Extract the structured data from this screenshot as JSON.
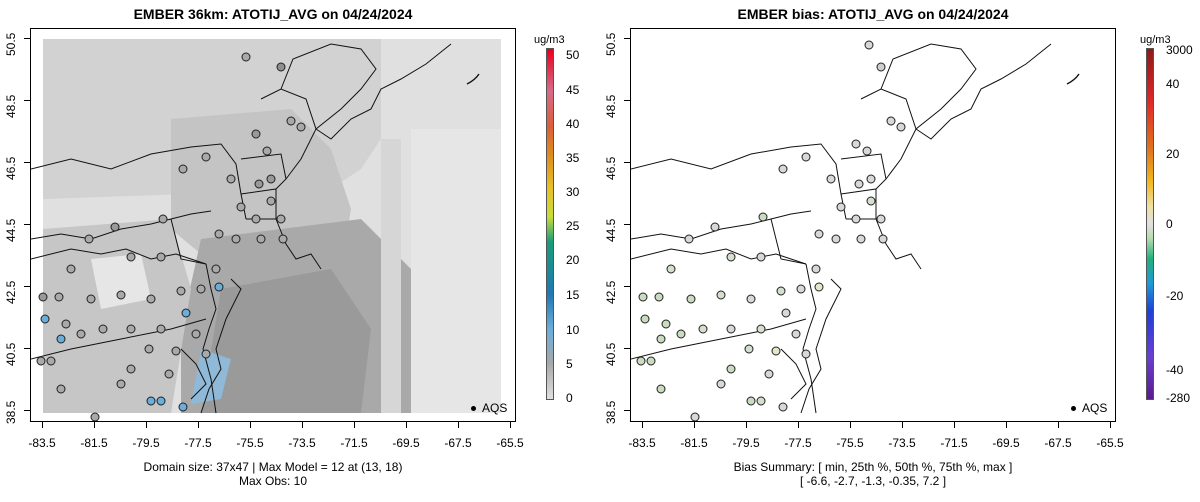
{
  "colors": {
    "land_gray": "#d9d9d9",
    "site_fill_left": "#a9a9a9",
    "site_fill_right": "#d4dfcd",
    "blue_site": "#6aaedb"
  },
  "left_panel": {
    "title": "EMBER 36km: ATOTIJ_AVG on 04/24/2024",
    "unit": "ug/m3",
    "colorbar_labels": [
      "50",
      "45",
      "40",
      "35",
      "30",
      "25",
      "20",
      "15",
      "10",
      "5",
      "0"
    ],
    "legend_label": "AQS",
    "footer_line1": "Domain size: 37x47 | Max Model = 12 at (13, 18)",
    "footer_line2": "Max Obs: 10"
  },
  "right_panel": {
    "title": "EMBER bias: ATOTIJ_AVG on 04/24/2024",
    "unit": "ug/m3",
    "colorbar_labels": [
      "3000",
      "40",
      "20",
      "0",
      "-20",
      "-40",
      "-280"
    ],
    "legend_label": "AQS",
    "footer_line1": "Bias Summary: [ min, 25th %, 50th %, 75th %, max ]",
    "footer_line2": "[ -6.6,   -2.7,   -1.3,   -0.35,   7.2 ]"
  },
  "axes": {
    "x_ticks": [
      "-83.5",
      "-81.5",
      "-79.5",
      "-77.5",
      "-75.5",
      "-73.5",
      "-71.5",
      "-69.5",
      "-67.5",
      "-65.5"
    ],
    "y_ticks": [
      "50.5",
      "48.5",
      "46.5",
      "44.5",
      "42.5",
      "40.5",
      "38.5"
    ]
  }
}
